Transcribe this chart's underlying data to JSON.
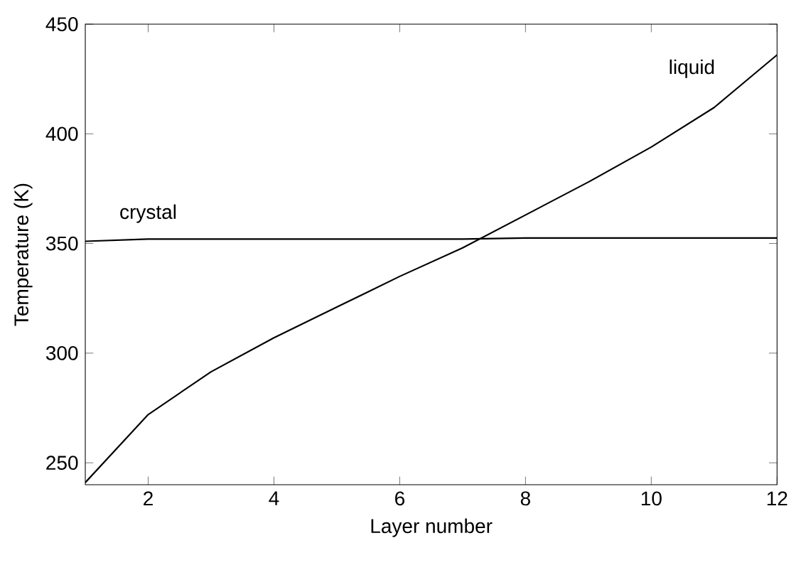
{
  "chart_data": {
    "type": "line",
    "xlabel": "Layer number",
    "ylabel": "Temperature  (K)",
    "x": [
      1,
      2,
      3,
      4,
      5,
      6,
      7,
      8,
      9,
      10,
      11,
      12
    ],
    "series": [
      {
        "name": "crystal",
        "color": "#000000",
        "values": [
          351,
          352,
          352,
          352,
          352,
          352,
          352,
          352.5,
          352.5,
          352.5,
          352.5,
          352.5
        ]
      },
      {
        "name": "liquid",
        "color": "#000000",
        "values": [
          241,
          272,
          291.5,
          307,
          321,
          335,
          348,
          363,
          378,
          394,
          412,
          436
        ]
      }
    ],
    "xlim": [
      1,
      12
    ],
    "ylim": [
      240,
      450
    ],
    "xticks": [
      2,
      4,
      6,
      8,
      10,
      12
    ],
    "yticks": [
      250,
      300,
      350,
      400,
      450
    ],
    "grid": false,
    "marker": "none",
    "line_style": "solid"
  }
}
